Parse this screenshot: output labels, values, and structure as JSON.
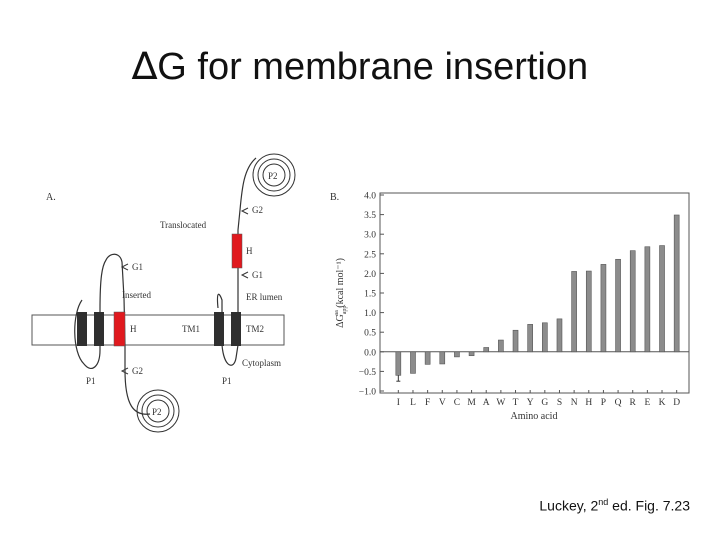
{
  "slide": {
    "title_symbol": "∆",
    "title_text": "G for membrane insertion",
    "citation_pre": "Luckey, 2",
    "citation_sup": "nd",
    "citation_post": " ed. Fig. 7.23"
  },
  "diagram": {
    "panel_label": "A.",
    "labels": {
      "p2_top": "P2",
      "g2_top": "G2",
      "translocated": "Translocated",
      "h_top": "H",
      "g1_top": "G1",
      "er_lumen": "ER lumen",
      "g1_left": "G1",
      "inserted": "Inserted",
      "h_mid": "H",
      "tm1": "TM1",
      "tm2": "TM2",
      "cytoplasm": "Cytoplasm",
      "p1_left": "P1",
      "g2_bottom": "G2",
      "p1_right": "P1",
      "p2_bottom": "P2"
    },
    "colors": {
      "segment": "#2f2f2f",
      "highlight": "#e0191e",
      "line": "#333333"
    }
  },
  "chart_data": {
    "type": "bar",
    "panel_label": "B.",
    "categories": [
      "I",
      "L",
      "F",
      "V",
      "C",
      "M",
      "A",
      "W",
      "T",
      "Y",
      "G",
      "S",
      "N",
      "H",
      "P",
      "Q",
      "R",
      "E",
      "K",
      "D"
    ],
    "values": [
      -0.6,
      -0.55,
      -0.32,
      -0.31,
      -0.13,
      -0.1,
      0.11,
      0.3,
      0.55,
      0.7,
      0.74,
      0.84,
      2.05,
      2.06,
      2.23,
      2.36,
      2.58,
      2.68,
      2.71,
      3.49
    ],
    "ylim": [
      -1.0,
      4.0
    ],
    "yticks": [
      "4.0",
      "3.5",
      "3.0",
      "2.5",
      "2.0",
      "1.5",
      "1.0",
      "0.5",
      "0.0",
      "−0.5",
      "−1.0"
    ],
    "ylabel": "ΔG app (kcal mol⁻¹)",
    "ylabel_main": "ΔG",
    "ylabel_sub": "app",
    "ylabel_sup": "aa",
    "ylabel_units": " (kcal mol⁻¹)",
    "xlabel": "Amino acid",
    "error_bar_on": "I",
    "bar_color": "#8c8c8c"
  }
}
